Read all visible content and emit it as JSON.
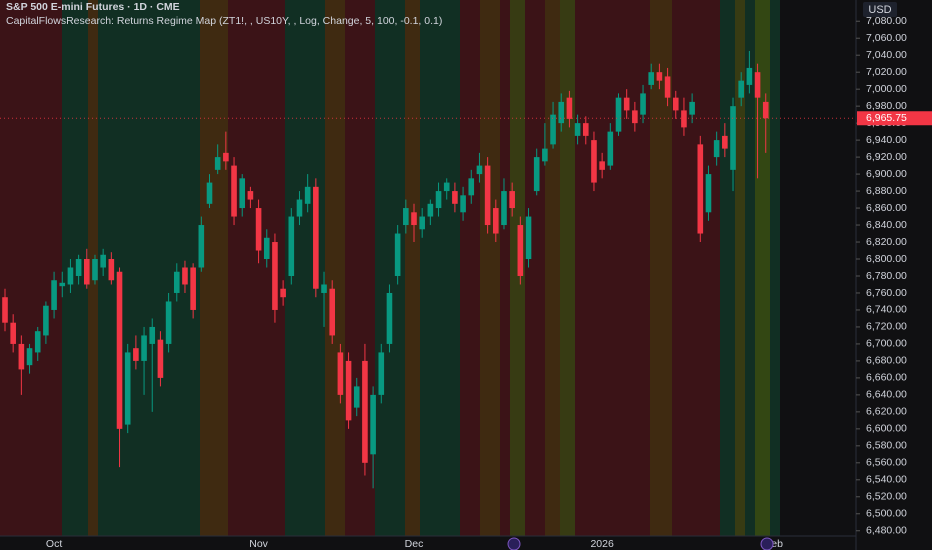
{
  "chart_data": {
    "type": "candlestick",
    "title": "S&P 500 E-mini Futures · 1D · CME",
    "subtitle": "CapitalFlowsResearch: Returns Regime Map (ZT1!, , US10Y, , Log, Change, 5, 100, -0.1, 0.1)",
    "currency": "USD",
    "up_color": "#089981",
    "down_color": "#f23645",
    "categories": [
      null,
      null,
      null,
      null,
      null,
      null,
      "Oct",
      null,
      null,
      null,
      null,
      null,
      null,
      null,
      null,
      null,
      null,
      null,
      null,
      null,
      null,
      null,
      null,
      null,
      null,
      null,
      null,
      null,
      null,
      null,
      null,
      "Nov",
      null,
      null,
      null,
      null,
      null,
      null,
      null,
      null,
      null,
      null,
      null,
      null,
      null,
      null,
      null,
      null,
      null,
      null,
      "Dec",
      null,
      null,
      null,
      null,
      null,
      null,
      null,
      null,
      null,
      null,
      null,
      null,
      null,
      null,
      null,
      null,
      null,
      null,
      null,
      null,
      null,
      null,
      "2026",
      null,
      null,
      null,
      null,
      null,
      null,
      null,
      null,
      null,
      null,
      null,
      null,
      null,
      null,
      null,
      null,
      null,
      null,
      null,
      null,
      "Feb"
    ],
    "open": [
      6755,
      6725,
      6700,
      6675,
      6690,
      6710,
      6740,
      6768,
      6770,
      6780,
      6800,
      6775,
      6790,
      6800,
      6785,
      6605,
      6695,
      6680,
      6700,
      6705,
      6700,
      6760,
      6790,
      6790,
      6790,
      6865,
      6905,
      6925,
      6910,
      6860,
      6880,
      6860,
      6800,
      6820,
      6765,
      6780,
      6850,
      6865,
      6885,
      6760,
      6765,
      6690,
      6680,
      6625,
      6680,
      6570,
      6640,
      6700,
      6780,
      6840,
      6855,
      6835,
      6850,
      6860,
      6880,
      6880,
      6855,
      6875,
      6900,
      6910,
      6860,
      6840,
      6880,
      6840,
      6800,
      6880,
      6915,
      6935,
      6960,
      6990,
      6945,
      6960,
      6940,
      6915,
      6910,
      6950,
      6990,
      6975,
      6970,
      7005,
      7020,
      7015,
      6990,
      6975,
      6970,
      6935,
      6855,
      6920,
      6945,
      6905,
      6990,
      7005,
      7020,
      6985,
      null
    ],
    "high": [
      6765,
      6735,
      6710,
      6700,
      6720,
      6750,
      6785,
      6785,
      6800,
      6805,
      6812,
      6805,
      6812,
      6808,
      6790,
      6700,
      6710,
      6720,
      6730,
      6715,
      6760,
      6795,
      6798,
      6795,
      6850,
      6900,
      6935,
      6950,
      6920,
      6900,
      6885,
      6870,
      6835,
      6830,
      6775,
      6860,
      6880,
      6900,
      6895,
      6785,
      6775,
      6700,
      6690,
      6660,
      6700,
      6650,
      6700,
      6770,
      6840,
      6870,
      6865,
      6860,
      6870,
      6890,
      6895,
      6890,
      6885,
      6905,
      6925,
      6920,
      6870,
      6895,
      6890,
      6850,
      6860,
      6930,
      6960,
      6985,
      6995,
      6998,
      6970,
      6968,
      6950,
      6925,
      6960,
      6995,
      7000,
      6985,
      7005,
      7030,
      7030,
      7025,
      6998,
      6990,
      6995,
      6945,
      6910,
      6950,
      6960,
      6990,
      7020,
      7045,
      7030,
      6995,
      null
    ],
    "low": [
      6715,
      6690,
      6640,
      6665,
      6680,
      6700,
      6730,
      6755,
      6760,
      6770,
      6765,
      6770,
      6780,
      6770,
      6555,
      6595,
      6670,
      6640,
      6620,
      6650,
      6690,
      6750,
      6760,
      6730,
      6785,
      6860,
      6900,
      6905,
      6840,
      6850,
      6860,
      6795,
      6790,
      6725,
      6745,
      6770,
      6840,
      6855,
      6755,
      6720,
      6700,
      6630,
      6600,
      6615,
      6545,
      6530,
      6630,
      6690,
      6770,
      6830,
      6820,
      6825,
      6840,
      6850,
      6870,
      6855,
      6845,
      6865,
      6890,
      6830,
      6820,
      6835,
      6850,
      6770,
      6790,
      6875,
      6910,
      6930,
      6950,
      6955,
      6935,
      6935,
      6880,
      6895,
      6905,
      6945,
      6965,
      6950,
      6960,
      7000,
      7000,
      6980,
      6965,
      6945,
      6960,
      6820,
      6845,
      6910,
      6920,
      6880,
      6980,
      6995,
      6895,
      6925,
      null
    ],
    "close": [
      6725,
      6700,
      6670,
      6695,
      6715,
      6745,
      6775,
      6772,
      6790,
      6800,
      6770,
      6800,
      6805,
      6775,
      6600,
      6690,
      6680,
      6710,
      6720,
      6660,
      6750,
      6785,
      6770,
      6740,
      6840,
      6890,
      6920,
      6915,
      6850,
      6895,
      6870,
      6810,
      6825,
      6740,
      6755,
      6850,
      6870,
      6885,
      6765,
      6770,
      6710,
      6640,
      6610,
      6650,
      6560,
      6640,
      6690,
      6760,
      6830,
      6860,
      6840,
      6850,
      6865,
      6880,
      6890,
      6865,
      6875,
      6895,
      6910,
      6840,
      6830,
      6880,
      6860,
      6780,
      6850,
      6920,
      6930,
      6970,
      6985,
      6965,
      6960,
      6945,
      6890,
      6905,
      6950,
      6990,
      6975,
      6960,
      6995,
      7020,
      7010,
      6990,
      6975,
      6955,
      6985,
      6830,
      6900,
      6940,
      6930,
      6980,
      7010,
      7025,
      6990,
      6965.75,
      null
    ],
    "last_price": {
      "value": 6965.75,
      "label": "6,965.75"
    },
    "ylim": [
      6475,
      7105
    ],
    "yticks": [
      {
        "value": 6480,
        "label": "6,480.00"
      },
      {
        "value": 6500,
        "label": "6,500.00"
      },
      {
        "value": 6520,
        "label": "6,520.00"
      },
      {
        "value": 6540,
        "label": "6,540.00"
      },
      {
        "value": 6560,
        "label": "6,560.00"
      },
      {
        "value": 6580,
        "label": "6,580.00"
      },
      {
        "value": 6600,
        "label": "6,600.00"
      },
      {
        "value": 6620,
        "label": "6,620.00"
      },
      {
        "value": 6640,
        "label": "6,640.00"
      },
      {
        "value": 6660,
        "label": "6,660.00"
      },
      {
        "value": 6680,
        "label": "6,680.00"
      },
      {
        "value": 6700,
        "label": "6,700.00"
      },
      {
        "value": 6720,
        "label": "6,720.00"
      },
      {
        "value": 6740,
        "label": "6,740.00"
      },
      {
        "value": 6760,
        "label": "6,760.00"
      },
      {
        "value": 6780,
        "label": "6,780.00"
      },
      {
        "value": 6800,
        "label": "6,800.00"
      },
      {
        "value": 6820,
        "label": "6,820.00"
      },
      {
        "value": 6840,
        "label": "6,840.00"
      },
      {
        "value": 6860,
        "label": "6,860.00"
      },
      {
        "value": 6880,
        "label": "6,880.00"
      },
      {
        "value": 6900,
        "label": "6,900.00"
      },
      {
        "value": 6920,
        "label": "6,920.00"
      },
      {
        "value": 6940,
        "label": "6,940.00"
      },
      {
        "value": 6960,
        "label": "6,960.00"
      },
      {
        "value": 6980,
        "label": "6,980.00"
      },
      {
        "value": 7000,
        "label": "7,000.00"
      },
      {
        "value": 7020,
        "label": "7,020.00"
      },
      {
        "value": 7040,
        "label": "7,040.00"
      },
      {
        "value": 7060,
        "label": "7,060.00"
      },
      {
        "value": 7080,
        "label": "7,080.00"
      }
    ],
    "grid": false
  }
}
